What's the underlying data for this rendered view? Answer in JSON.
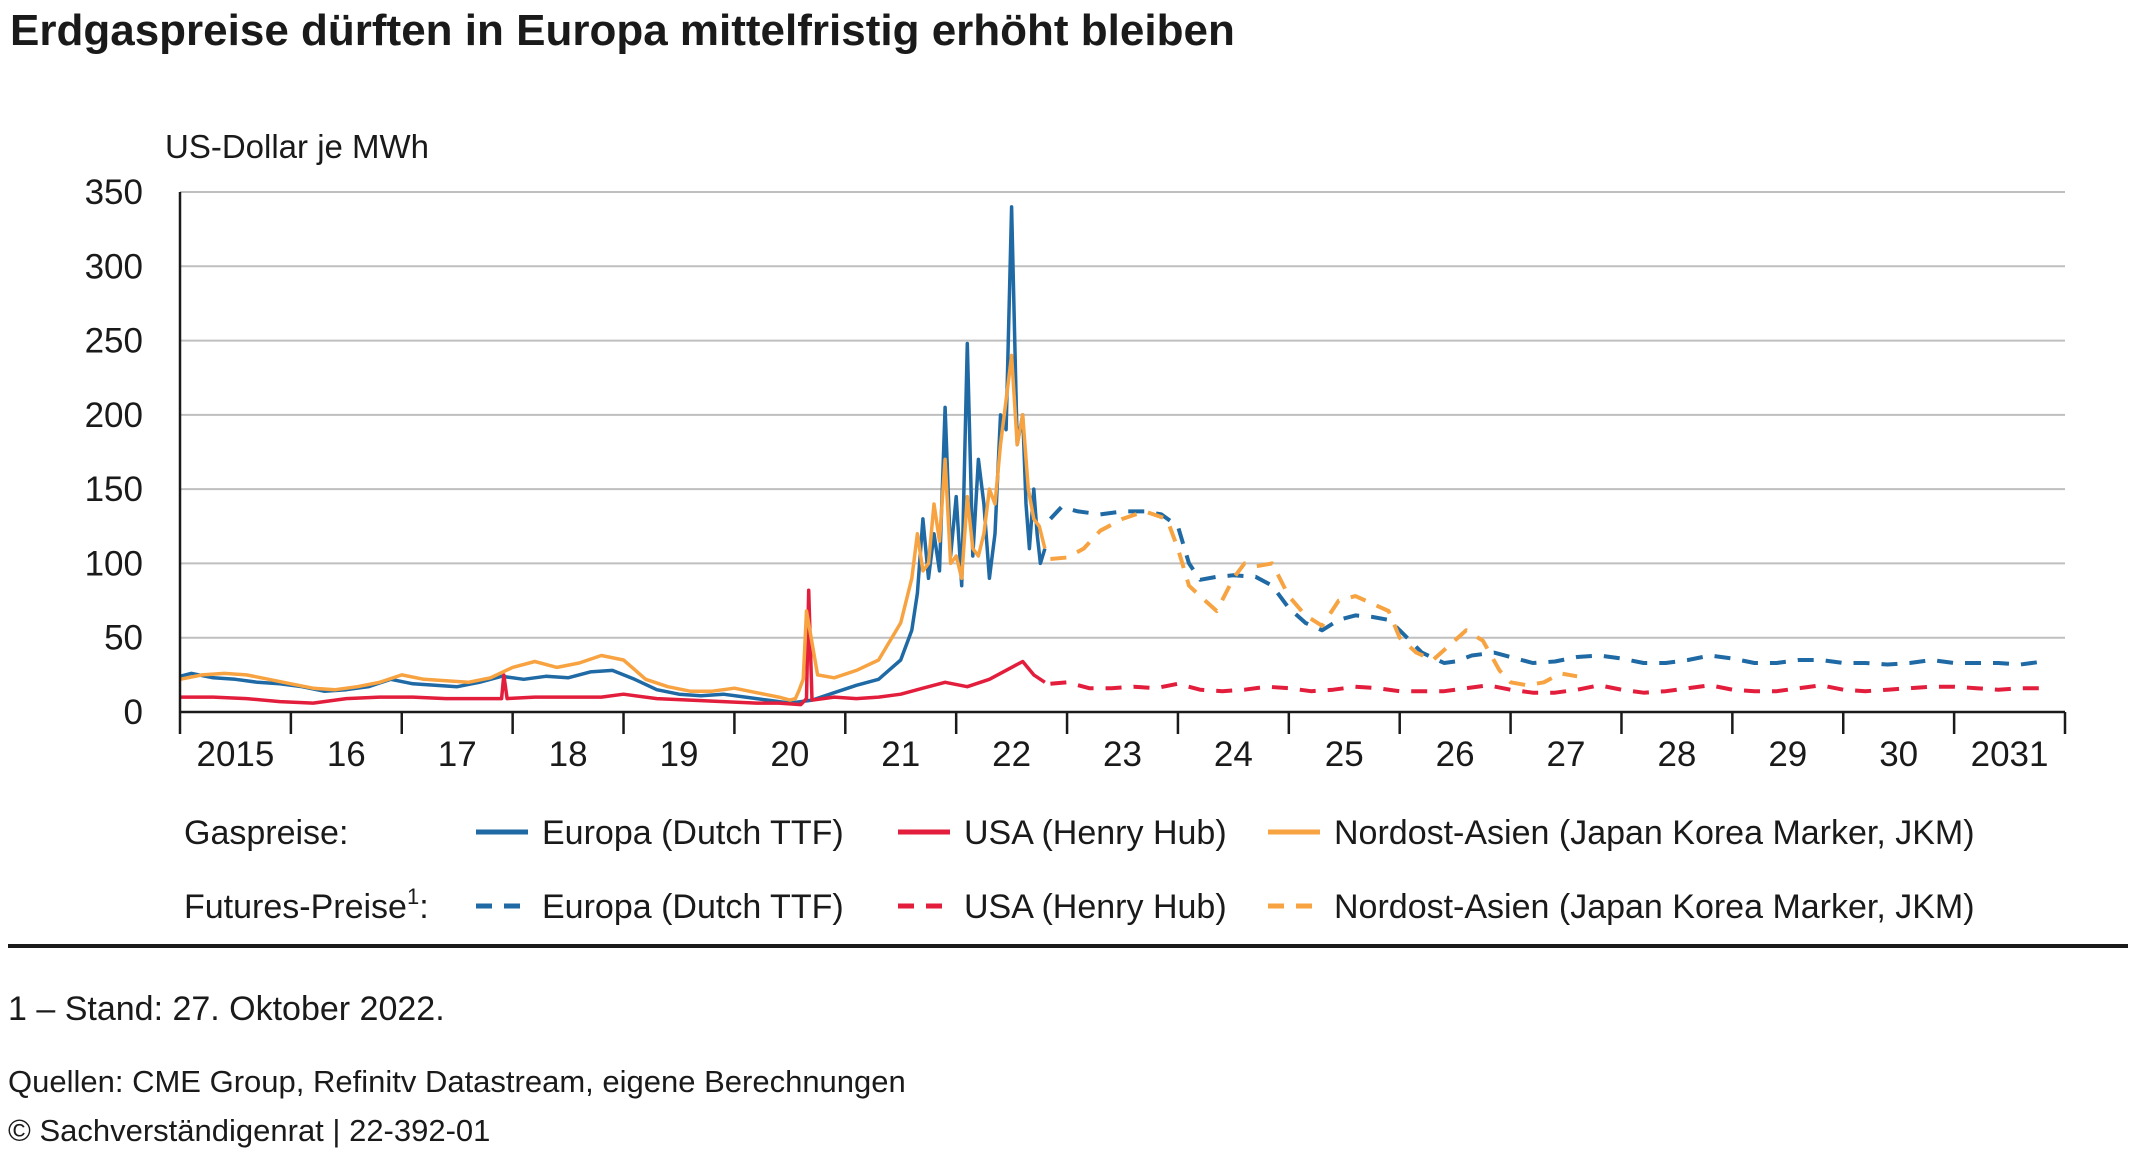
{
  "title": "Erdgaspreise dürften in Europa mittelfristig erhöht bleiben",
  "footnote": "1 – Stand: 27. Oktober 2022.",
  "source": "Quellen: CME Group, Refinitv Datastream, eigene Berechnungen",
  "copyright": "© Sachverständigenrat | 22-392-01",
  "legend": {
    "row1_label": "Gaspreise:",
    "row2_label": "Futures-Preise",
    "row2_sup": "1",
    "row2_colon": ":"
  },
  "colors": {
    "europe": "#1f6aa5",
    "usa": "#e31e3c",
    "asia": "#f7a341",
    "grid": "#bfbfbf",
    "axis": "#1a1a1a"
  },
  "chart_data": {
    "type": "line",
    "title": "Erdgaspreise dürften in Europa mittelfristig erhöht bleiben",
    "ylabel": "US-Dollar je MWh",
    "xlabel": "",
    "ylim": [
      0,
      350
    ],
    "xlim": [
      2015.0,
      2032.0
    ],
    "yticks": [
      0,
      50,
      100,
      150,
      200,
      250,
      300,
      350
    ],
    "xtick_labels": [
      {
        "x": 2015.5,
        "label": "2015"
      },
      {
        "x": 2016.5,
        "label": "16"
      },
      {
        "x": 2017.5,
        "label": "17"
      },
      {
        "x": 2018.5,
        "label": "18"
      },
      {
        "x": 2019.5,
        "label": "19"
      },
      {
        "x": 2020.5,
        "label": "20"
      },
      {
        "x": 2021.5,
        "label": "21"
      },
      {
        "x": 2022.5,
        "label": "22"
      },
      {
        "x": 2023.5,
        "label": "23"
      },
      {
        "x": 2024.5,
        "label": "24"
      },
      {
        "x": 2025.5,
        "label": "25"
      },
      {
        "x": 2026.5,
        "label": "26"
      },
      {
        "x": 2027.5,
        "label": "27"
      },
      {
        "x": 2028.5,
        "label": "28"
      },
      {
        "x": 2029.5,
        "label": "29"
      },
      {
        "x": 2030.5,
        "label": "30"
      },
      {
        "x": 2031.5,
        "label": "2031"
      }
    ],
    "grid": true,
    "legend_position": "bottom",
    "series": [
      {
        "name": "Europa (Dutch TTF)",
        "group": "Gaspreise",
        "color": "#1f6aa5",
        "dash": false,
        "x": [
          2015.0,
          2015.1,
          2015.3,
          2015.5,
          2015.7,
          2015.9,
          2016.1,
          2016.3,
          2016.5,
          2016.7,
          2016.9,
          2017.1,
          2017.3,
          2017.5,
          2017.7,
          2017.9,
          2018.1,
          2018.3,
          2018.5,
          2018.7,
          2018.9,
          2019.1,
          2019.3,
          2019.5,
          2019.7,
          2019.9,
          2020.1,
          2020.3,
          2020.5,
          2020.7,
          2020.9,
          2021.1,
          2021.3,
          2021.5,
          2021.6,
          2021.65,
          2021.7,
          2021.75,
          2021.8,
          2021.85,
          2021.9,
          2021.95,
          2022.0,
          2022.05,
          2022.1,
          2022.15,
          2022.2,
          2022.25,
          2022.3,
          2022.35,
          2022.4,
          2022.45,
          2022.5,
          2022.55,
          2022.6,
          2022.63,
          2022.66,
          2022.7,
          2022.73,
          2022.76,
          2022.8
        ],
        "y": [
          24,
          26,
          23,
          22,
          20,
          19,
          17,
          14,
          15,
          17,
          22,
          19,
          18,
          17,
          20,
          24,
          22,
          24,
          23,
          27,
          28,
          22,
          15,
          12,
          11,
          12,
          10,
          8,
          6,
          8,
          13,
          18,
          22,
          35,
          55,
          80,
          130,
          90,
          120,
          95,
          205,
          105,
          145,
          85,
          248,
          105,
          170,
          140,
          90,
          120,
          200,
          190,
          340,
          180,
          200,
          140,
          110,
          150,
          120,
          100,
          110
        ]
      },
      {
        "name": "USA (Henry Hub)",
        "group": "Gaspreise",
        "color": "#e31e3c",
        "dash": false,
        "x": [
          2015.0,
          2015.3,
          2015.6,
          2015.9,
          2016.2,
          2016.5,
          2016.8,
          2017.1,
          2017.4,
          2017.7,
          2017.9,
          2017.92,
          2017.95,
          2018.2,
          2018.5,
          2018.8,
          2019.0,
          2019.3,
          2019.6,
          2019.9,
          2020.2,
          2020.4,
          2020.6,
          2020.65,
          2020.67,
          2020.7,
          2020.9,
          2021.1,
          2021.3,
          2021.5,
          2021.7,
          2021.9,
          2022.1,
          2022.3,
          2022.5,
          2022.6,
          2022.7,
          2022.8
        ],
        "y": [
          10,
          10,
          9,
          7,
          6,
          9,
          10,
          10,
          9,
          9,
          9,
          25,
          9,
          10,
          10,
          10,
          12,
          9,
          8,
          7,
          6,
          6,
          5,
          9,
          82,
          8,
          10,
          9,
          10,
          12,
          16,
          20,
          17,
          22,
          30,
          34,
          25,
          20
        ]
      },
      {
        "name": "Nordost-Asien (Japan Korea Marker, JKM)",
        "group": "Gaspreise",
        "color": "#f7a341",
        "dash": false,
        "x": [
          2015.0,
          2015.2,
          2015.4,
          2015.6,
          2015.8,
          2016.0,
          2016.2,
          2016.4,
          2016.6,
          2016.8,
          2017.0,
          2017.2,
          2017.4,
          2017.6,
          2017.8,
          2018.0,
          2018.2,
          2018.4,
          2018.6,
          2018.8,
          2019.0,
          2019.2,
          2019.4,
          2019.6,
          2019.8,
          2020.0,
          2020.2,
          2020.4,
          2020.5,
          2020.55,
          2020.58,
          2020.62,
          2020.65,
          2020.75,
          2020.9,
          2021.1,
          2021.3,
          2021.5,
          2021.6,
          2021.65,
          2021.7,
          2021.75,
          2021.8,
          2021.85,
          2021.9,
          2021.95,
          2022.0,
          2022.05,
          2022.1,
          2022.15,
          2022.2,
          2022.25,
          2022.3,
          2022.35,
          2022.4,
          2022.45,
          2022.5,
          2022.55,
          2022.6,
          2022.65,
          2022.7,
          2022.75,
          2022.8
        ],
        "y": [
          22,
          25,
          26,
          25,
          22,
          19,
          16,
          15,
          17,
          20,
          25,
          22,
          21,
          20,
          23,
          30,
          34,
          30,
          33,
          38,
          35,
          22,
          17,
          14,
          14,
          16,
          13,
          10,
          8,
          9,
          14,
          22,
          68,
          25,
          23,
          28,
          35,
          60,
          90,
          120,
          95,
          100,
          140,
          115,
          170,
          100,
          105,
          90,
          145,
          110,
          105,
          120,
          150,
          140,
          180,
          210,
          240,
          180,
          200,
          150,
          130,
          125,
          110
        ]
      },
      {
        "name": "Europa (Dutch TTF)",
        "group": "Futures-Preise",
        "color": "#1f6aa5",
        "dash": true,
        "x": [
          2022.85,
          2022.95,
          2023.1,
          2023.3,
          2023.5,
          2023.7,
          2023.85,
          2024.0,
          2024.1,
          2024.2,
          2024.35,
          2024.5,
          2024.7,
          2024.85,
          2025.0,
          2025.15,
          2025.3,
          2025.45,
          2025.6,
          2025.75,
          2025.9,
          2026.0,
          2026.2,
          2026.4,
          2026.5,
          2026.65,
          2026.85,
          2027.0,
          2027.2,
          2027.4,
          2027.6,
          2027.8,
          2028.0,
          2028.2,
          2028.4,
          2028.6,
          2028.8,
          2029.0,
          2029.2,
          2029.4,
          2029.6,
          2029.8,
          2030.0,
          2030.2,
          2030.4,
          2030.6,
          2030.8,
          2031.0,
          2031.2,
          2031.4,
          2031.6,
          2031.8
        ],
        "y": [
          130,
          138,
          135,
          133,
          135,
          135,
          133,
          125,
          100,
          89,
          91,
          92,
          91,
          85,
          70,
          60,
          55,
          62,
          65,
          64,
          62,
          55,
          40,
          33,
          34,
          38,
          40,
          37,
          33,
          34,
          37,
          38,
          36,
          33,
          33,
          35,
          38,
          36,
          33,
          33,
          35,
          35,
          33,
          33,
          32,
          33,
          35,
          33,
          33,
          33,
          32,
          34
        ]
      },
      {
        "name": "USA (Henry Hub)",
        "group": "Futures-Preise",
        "color": "#e31e3c",
        "dash": true,
        "x": [
          2022.85,
          2023.0,
          2023.2,
          2023.4,
          2023.6,
          2023.8,
          2024.0,
          2024.2,
          2024.4,
          2024.6,
          2024.8,
          2025.0,
          2025.2,
          2025.4,
          2025.6,
          2025.8,
          2026.0,
          2026.2,
          2026.4,
          2026.6,
          2026.8,
          2027.0,
          2027.2,
          2027.4,
          2027.6,
          2027.8,
          2028.0,
          2028.2,
          2028.4,
          2028.6,
          2028.8,
          2029.0,
          2029.2,
          2029.4,
          2029.6,
          2029.8,
          2030.0,
          2030.2,
          2030.4,
          2030.6,
          2030.8,
          2031.0,
          2031.2,
          2031.4,
          2031.6,
          2031.8
        ],
        "y": [
          19,
          20,
          16,
          16,
          17,
          16,
          19,
          15,
          14,
          15,
          17,
          16,
          14,
          15,
          17,
          16,
          14,
          14,
          14,
          16,
          18,
          15,
          13,
          13,
          15,
          18,
          15,
          13,
          14,
          16,
          18,
          15,
          14,
          14,
          16,
          18,
          15,
          14,
          15,
          16,
          17,
          17,
          16,
          15,
          16,
          16
        ]
      },
      {
        "name": "Nordost-Asien (Japan Korea Marker, JKM)",
        "group": "Futures-Preise",
        "color": "#f7a341",
        "dash": true,
        "x": [
          2022.85,
          2023.0,
          2023.15,
          2023.3,
          2023.5,
          2023.7,
          2023.9,
          2024.0,
          2024.1,
          2024.2,
          2024.35,
          2024.5,
          2024.6,
          2024.7,
          2024.85,
          2025.0,
          2025.15,
          2025.3,
          2025.45,
          2025.6,
          2025.75,
          2025.9,
          2026.0,
          2026.15,
          2026.3,
          2026.45,
          2026.6,
          2026.75,
          2026.9,
          2027.0,
          2027.15,
          2027.3,
          2027.45,
          2027.6
        ],
        "y": [
          103,
          104,
          110,
          122,
          130,
          135,
          130,
          110,
          85,
          78,
          68,
          90,
          100,
          98,
          100,
          78,
          65,
          58,
          75,
          78,
          73,
          68,
          50,
          40,
          35,
          45,
          55,
          48,
          28,
          20,
          18,
          20,
          26,
          24
        ]
      }
    ]
  }
}
